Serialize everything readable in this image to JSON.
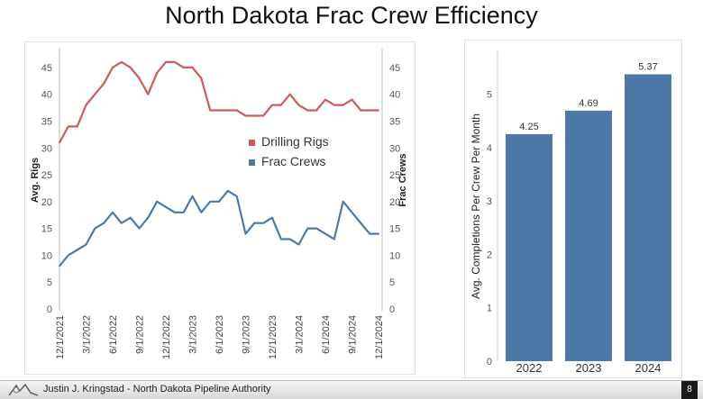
{
  "page": {
    "title": "North Dakota Frac Crew Efficiency"
  },
  "footer": {
    "text": "Justin J. Kringstad - North Dakota Pipeline Authority",
    "page_number": "8"
  },
  "colors": {
    "rigs": "#cd5a5c",
    "crews": "#4e79a7",
    "bars": "#4e79a7"
  },
  "chart_data": [
    {
      "type": "line",
      "title": "",
      "ylabel": "Avg. Rigs",
      "y2label": "Frac Crews",
      "ylim": [
        0,
        48
      ],
      "yticks": [
        0,
        5,
        10,
        15,
        20,
        25,
        30,
        35,
        40,
        45
      ],
      "xticklabels": [
        "12/1/2021",
        "3/1/2022",
        "6/1/2022",
        "9/1/2022",
        "12/1/2022",
        "3/1/2023",
        "6/1/2023",
        "9/1/2023",
        "12/1/2023",
        "3/1/2024",
        "6/1/2024",
        "9/1/2024",
        "12/1/2024"
      ],
      "x": [
        "2021-12",
        "2022-01",
        "2022-02",
        "2022-03",
        "2022-04",
        "2022-05",
        "2022-06",
        "2022-07",
        "2022-08",
        "2022-09",
        "2022-10",
        "2022-11",
        "2022-12",
        "2023-01",
        "2023-02",
        "2023-03",
        "2023-04",
        "2023-05",
        "2023-06",
        "2023-07",
        "2023-08",
        "2023-09",
        "2023-10",
        "2023-11",
        "2023-12",
        "2024-01",
        "2024-02",
        "2024-03",
        "2024-04",
        "2024-05",
        "2024-06",
        "2024-07",
        "2024-08",
        "2024-09",
        "2024-10",
        "2024-11",
        "2024-12"
      ],
      "legend_position": "center",
      "series": [
        {
          "name": "Drilling Rigs",
          "axis": "left",
          "values": [
            31,
            34,
            34,
            38,
            40,
            42,
            45,
            46,
            45,
            43,
            40,
            44,
            46,
            46,
            45,
            45,
            43,
            37,
            37,
            37,
            37,
            36,
            36,
            36,
            38,
            38,
            40,
            38,
            37,
            37,
            39,
            38,
            38,
            39,
            37,
            37,
            37
          ]
        },
        {
          "name": "Frac Crews",
          "axis": "right",
          "values": [
            8,
            10,
            11,
            12,
            15,
            16,
            18,
            16,
            17,
            15,
            17,
            20,
            19,
            18,
            18,
            21,
            18,
            20,
            20,
            22,
            21,
            14,
            16,
            16,
            17,
            13,
            13,
            12,
            15,
            15,
            14,
            13,
            20,
            18,
            16,
            14,
            14
          ]
        }
      ]
    },
    {
      "type": "bar",
      "title": "",
      "ylabel": "Avg. Completions Per Crew Per Month",
      "ylim": [
        0,
        5.8
      ],
      "yticks": [
        0,
        1,
        2,
        3,
        4,
        5
      ],
      "categories": [
        "2022",
        "2023",
        "2024"
      ],
      "values": [
        4.25,
        4.69,
        5.37
      ],
      "data_labels": [
        "4.25",
        "4.69",
        "5.37"
      ]
    }
  ]
}
